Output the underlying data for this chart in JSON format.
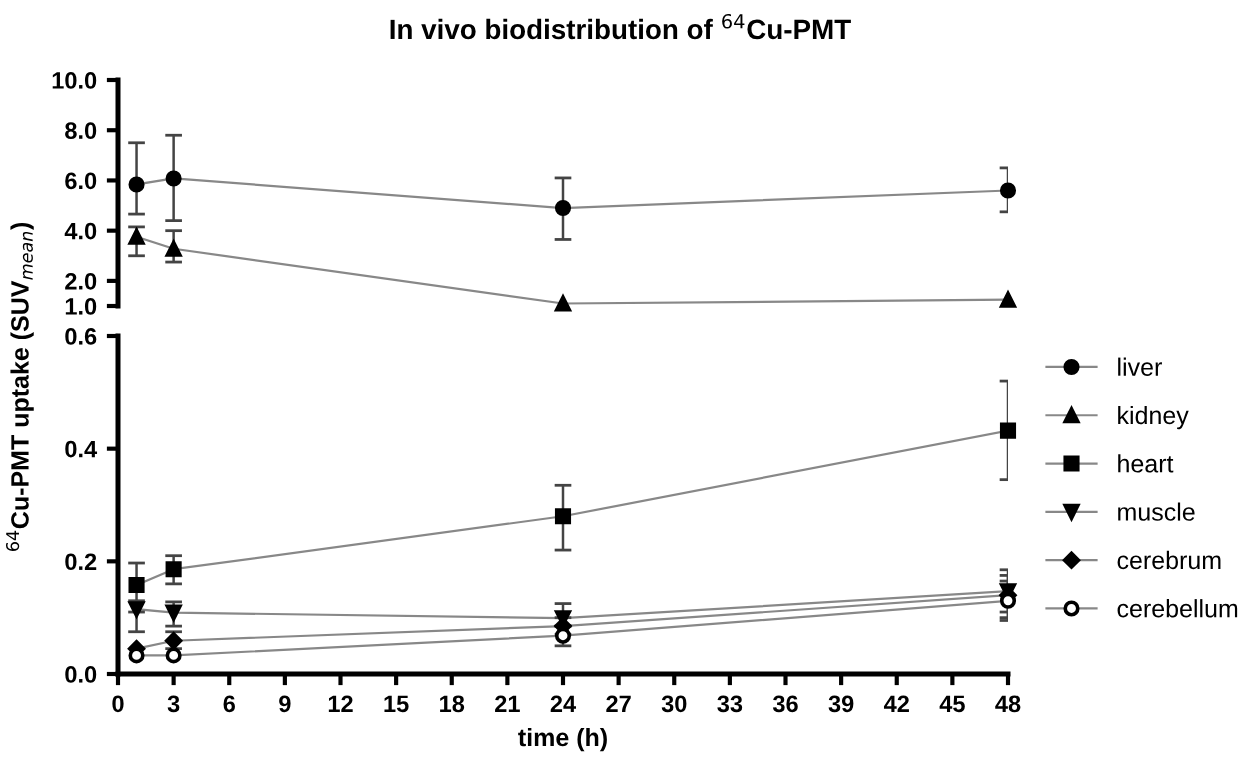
{
  "chart_data": [
    {
      "type": "line",
      "title": "In vivo biodistribution of $^{64}$Cu-PMT",
      "ylabel": "$^{64}$Cu-PMT uptake (SUV$_{mean}$)",
      "x": [
        1,
        3,
        24,
        48
      ],
      "xlim": [
        0,
        48
      ],
      "ylim": [
        1,
        10
      ],
      "yticks": [
        {
          "value": 1,
          "label": "1.0"
        },
        {
          "value": 2,
          "label": "2.0"
        },
        {
          "value": 4,
          "label": "4.0"
        },
        {
          "value": 6,
          "label": "6.0"
        },
        {
          "value": 8,
          "label": "8.0"
        },
        {
          "value": 10,
          "label": "10.0"
        }
      ],
      "tick_labels": "y",
      "grid": false,
      "legend": "right",
      "series": [
        {
          "name": "liver",
          "color": "#000000",
          "marker": "circle",
          "values": [
            5.84,
            6.08,
            4.9,
            5.6
          ],
          "errors": [
            [
              4.66,
              7.5
            ],
            [
              4.4,
              7.8
            ],
            [
              3.65,
              6.1
            ],
            [
              4.75,
              6.5
            ]
          ]
        },
        {
          "name": "kidney",
          "color": "#000000",
          "marker": "triangle",
          "values": [
            3.76,
            3.28,
            1.1,
            1.25
          ],
          "errors": [
            [
              3.0,
              4.15
            ],
            [
              2.75,
              4.0
            ],
            null,
            null
          ]
        }
      ]
    },
    {
      "type": "line",
      "xlabel": "time (h)",
      "x": [
        1,
        3,
        24,
        48
      ],
      "xlim": [
        0,
        48
      ],
      "xticks": [
        0,
        3,
        6,
        9,
        12,
        15,
        18,
        21,
        24,
        27,
        30,
        33,
        36,
        39,
        42,
        45,
        48
      ],
      "ylim": [
        0,
        0.6
      ],
      "yticks": [
        {
          "value": 0,
          "label": "0.0"
        },
        {
          "value": 0.2,
          "label": "0.2"
        },
        {
          "value": 0.4,
          "label": "0.4"
        },
        {
          "value": 0.6,
          "label": "0.6"
        }
      ],
      "grid": false,
      "legend": "right",
      "series": [
        {
          "name": "heart",
          "color": "#000000",
          "marker": "square",
          "values": [
            0.158,
            0.186,
            0.28,
            0.432
          ],
          "errors": [
            [
              0.11,
              0.197
            ],
            [
              0.16,
              0.21
            ],
            [
              0.22,
              0.335
            ],
            [
              0.345,
              0.52
            ]
          ]
        },
        {
          "name": "muscle",
          "color": "#000000",
          "marker": "triangle_down",
          "values": [
            0.115,
            0.109,
            0.099,
            0.147
          ],
          "errors": [
            [
              0.075,
              0.13
            ],
            [
              0.085,
              0.128
            ],
            [
              0.085,
              0.125
            ],
            [
              0.11,
              0.185
            ]
          ]
        },
        {
          "name": "cerebrum",
          "color": "#000000",
          "marker": "diamond",
          "values": [
            0.045,
            0.059,
            0.085,
            0.14
          ],
          "errors": [
            null,
            [
              0.045,
              0.075
            ],
            [
              0.07,
              0.1
            ],
            [
              0.1,
              0.175
            ]
          ]
        },
        {
          "name": "cerebellum",
          "color": "#000000",
          "marker": "circle_open",
          "values": [
            0.033,
            0.033,
            0.068,
            0.13
          ],
          "errors": [
            null,
            null,
            [
              0.05,
              0.085
            ],
            [
              0.095,
              0.165
            ]
          ]
        }
      ]
    }
  ]
}
